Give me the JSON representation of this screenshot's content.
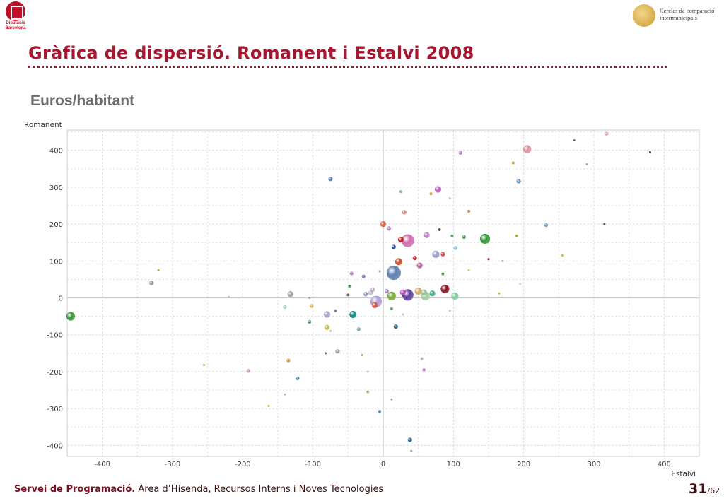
{
  "header": {
    "org_logo_lines": [
      "Diputació",
      "Barcelona"
    ],
    "brand_lines": [
      "Cercles de comparació",
      "intermunicipals"
    ]
  },
  "title": "Gràfica de dispersió. Romanent i Estalvi 2008",
  "subtitle": "Euros/habitant",
  "footer": {
    "bold": "Servei de Programació.",
    "rest": " Àrea d’Hisenda, Recursos Interns i Noves Tecnologies",
    "page": "31",
    "total": "/62"
  },
  "chart_data": {
    "type": "scatter",
    "title": "",
    "xlabel": "Estalvi",
    "ylabel": "Romanent",
    "xlim": [
      -450,
      450
    ],
    "ylim": [
      -430,
      455
    ],
    "xticks": [
      -400,
      -300,
      -200,
      -100,
      0,
      100,
      200,
      300,
      400
    ],
    "yticks": [
      -400,
      -300,
      -200,
      -100,
      0,
      100,
      200,
      300,
      400
    ],
    "grid": true,
    "points": [
      {
        "x": -445,
        "y": -50,
        "size": 6,
        "color": "#3a9a3a"
      },
      {
        "x": -330,
        "y": 40,
        "size": 3,
        "color": "#9a9a9a"
      },
      {
        "x": -320,
        "y": 75,
        "size": 1.5,
        "color": "#c8a030"
      },
      {
        "x": -255,
        "y": -182,
        "size": 1.5,
        "color": "#c8a030"
      },
      {
        "x": -220,
        "y": 2,
        "size": 1.5,
        "color": "#c8c890"
      },
      {
        "x": -192,
        "y": -198,
        "size": 2.5,
        "color": "#d38fd3"
      },
      {
        "x": -163,
        "y": -293,
        "size": 1.5,
        "color": "#c8b840"
      },
      {
        "x": -140,
        "y": -262,
        "size": 1.5,
        "color": "#a0c8a0"
      },
      {
        "x": -140,
        "y": -25,
        "size": 2.5,
        "color": "#a0e0c0"
      },
      {
        "x": -135,
        "y": -170,
        "size": 2.5,
        "color": "#e09040"
      },
      {
        "x": -132,
        "y": 10,
        "size": 4,
        "color": "#a0a0a0"
      },
      {
        "x": -122,
        "y": -218,
        "size": 2.5,
        "color": "#3a7a9a"
      },
      {
        "x": -105,
        "y": 0,
        "size": 1.5,
        "color": "#a0a0c0"
      },
      {
        "x": -102,
        "y": -22,
        "size": 2.5,
        "color": "#e0b040"
      },
      {
        "x": -105,
        "y": -65,
        "size": 2.5,
        "color": "#40a060"
      },
      {
        "x": -82,
        "y": -150,
        "size": 1.5,
        "color": "#606060"
      },
      {
        "x": -80,
        "y": -80,
        "size": 3.5,
        "color": "#d4c040"
      },
      {
        "x": -80,
        "y": -45,
        "size": 4.5,
        "color": "#b0a0d0"
      },
      {
        "x": -75,
        "y": 322,
        "size": 3,
        "color": "#5080c0"
      },
      {
        "x": -75,
        "y": -90,
        "size": 1.5,
        "color": "#c0c0c0"
      },
      {
        "x": -68,
        "y": -35,
        "size": 2,
        "color": "#8080a0"
      },
      {
        "x": -65,
        "y": -145,
        "size": 3,
        "color": "#a0a0b0"
      },
      {
        "x": -50,
        "y": 8,
        "size": 2,
        "color": "#606080"
      },
      {
        "x": -48,
        "y": 32,
        "size": 2,
        "color": "#40a040"
      },
      {
        "x": -45,
        "y": 66,
        "size": 2.5,
        "color": "#c080c0"
      },
      {
        "x": -43,
        "y": -45,
        "size": 5,
        "color": "#1a8a8a"
      },
      {
        "x": -35,
        "y": -85,
        "size": 2.5,
        "color": "#80a0b0"
      },
      {
        "x": -30,
        "y": -155,
        "size": 1.5,
        "color": "#a0c040"
      },
      {
        "x": -28,
        "y": 58,
        "size": 2.5,
        "color": "#8080c0"
      },
      {
        "x": -25,
        "y": 10,
        "size": 3,
        "color": "#9090c0"
      },
      {
        "x": -22,
        "y": -200,
        "size": 1.5,
        "color": "#c0c0c0"
      },
      {
        "x": -22,
        "y": -255,
        "size": 2,
        "color": "#c0b080"
      },
      {
        "x": -18,
        "y": 14,
        "size": 3,
        "color": "#c0c0d0"
      },
      {
        "x": -15,
        "y": 22,
        "size": 3,
        "color": "#d0a0d0"
      },
      {
        "x": -12,
        "y": -20,
        "size": 4,
        "color": "#e05040"
      },
      {
        "x": -10,
        "y": -10,
        "size": 8,
        "color": "#b0a0d8"
      },
      {
        "x": -5,
        "y": -308,
        "size": 2,
        "color": "#3a8ac0"
      },
      {
        "x": -5,
        "y": 72,
        "size": 1.5,
        "color": "#80c080"
      },
      {
        "x": 0,
        "y": 200,
        "size": 4,
        "color": "#e06040"
      },
      {
        "x": 5,
        "y": 18,
        "size": 3,
        "color": "#b080c0"
      },
      {
        "x": 8,
        "y": 188,
        "size": 3,
        "color": "#c080d0"
      },
      {
        "x": 12,
        "y": -275,
        "size": 1.5,
        "color": "#a0a0a0"
      },
      {
        "x": 12,
        "y": -30,
        "size": 2,
        "color": "#60a060"
      },
      {
        "x": 12,
        "y": 5,
        "size": 6,
        "color": "#7ab040"
      },
      {
        "x": 15,
        "y": 68,
        "size": 10,
        "color": "#6080b0"
      },
      {
        "x": 15,
        "y": 138,
        "size": 3,
        "color": "#3050a0"
      },
      {
        "x": 18,
        "y": -78,
        "size": 3,
        "color": "#2a6a8a"
      },
      {
        "x": 22,
        "y": 98,
        "size": 5,
        "color": "#d05030"
      },
      {
        "x": 25,
        "y": 158,
        "size": 4,
        "color": "#c02020"
      },
      {
        "x": 25,
        "y": 288,
        "size": 2,
        "color": "#80c0a0"
      },
      {
        "x": 28,
        "y": -45,
        "size": 1.5,
        "color": "#c0c0c0"
      },
      {
        "x": 28,
        "y": 15,
        "size": 4,
        "color": "#c050c0"
      },
      {
        "x": 30,
        "y": 232,
        "size": 3,
        "color": "#d09070"
      },
      {
        "x": 35,
        "y": 155,
        "size": 9,
        "color": "#d070b0"
      },
      {
        "x": 35,
        "y": 8,
        "size": 8,
        "color": "#6040a0"
      },
      {
        "x": 38,
        "y": -385,
        "size": 3,
        "color": "#2a6a9a"
      },
      {
        "x": 40,
        "y": -415,
        "size": 1.5,
        "color": "#a0a0a0"
      },
      {
        "x": 45,
        "y": 108,
        "size": 3,
        "color": "#c02020"
      },
      {
        "x": 50,
        "y": 18,
        "size": 5,
        "color": "#d0b060"
      },
      {
        "x": 52,
        "y": 88,
        "size": 4,
        "color": "#b060a0"
      },
      {
        "x": 55,
        "y": -165,
        "size": 2,
        "color": "#a0c0d0"
      },
      {
        "x": 58,
        "y": -195,
        "size": 2,
        "color": "#c060c0"
      },
      {
        "x": 58,
        "y": 15,
        "size": 4,
        "color": "#a0c0a0"
      },
      {
        "x": 60,
        "y": 5,
        "size": 6,
        "color": "#a0d0a0"
      },
      {
        "x": 62,
        "y": 170,
        "size": 4,
        "color": "#c080d0"
      },
      {
        "x": 68,
        "y": 282,
        "size": 2,
        "color": "#c0a040"
      },
      {
        "x": 70,
        "y": 12,
        "size": 4,
        "color": "#40b080"
      },
      {
        "x": 75,
        "y": 118,
        "size": 5,
        "color": "#a0a0d0"
      },
      {
        "x": 78,
        "y": 294,
        "size": 4.5,
        "color": "#c060c0"
      },
      {
        "x": 80,
        "y": 185,
        "size": 2,
        "color": "#606060"
      },
      {
        "x": 85,
        "y": 118,
        "size": 3,
        "color": "#e04040"
      },
      {
        "x": 85,
        "y": 65,
        "size": 2,
        "color": "#40a040"
      },
      {
        "x": 88,
        "y": 24,
        "size": 6,
        "color": "#8a1a2a"
      },
      {
        "x": 95,
        "y": -35,
        "size": 1.5,
        "color": "#c0c0c0"
      },
      {
        "x": 95,
        "y": 270,
        "size": 1.5,
        "color": "#c0c0c0"
      },
      {
        "x": 98,
        "y": 168,
        "size": 2,
        "color": "#60a060"
      },
      {
        "x": 102,
        "y": 5,
        "size": 5,
        "color": "#80d0a0"
      },
      {
        "x": 103,
        "y": 135,
        "size": 2.5,
        "color": "#80c0e0"
      },
      {
        "x": 110,
        "y": 393,
        "size": 2.5,
        "color": "#b080c0"
      },
      {
        "x": 115,
        "y": 165,
        "size": 2.5,
        "color": "#40a040"
      },
      {
        "x": 122,
        "y": 235,
        "size": 2,
        "color": "#c09040"
      },
      {
        "x": 122,
        "y": 75,
        "size": 1.5,
        "color": "#c0c040"
      },
      {
        "x": 145,
        "y": 160,
        "size": 7,
        "color": "#3a9a3a"
      },
      {
        "x": 150,
        "y": 105,
        "size": 1.5,
        "color": "#a02020"
      },
      {
        "x": 165,
        "y": 12,
        "size": 1.5,
        "color": "#c0c040"
      },
      {
        "x": 170,
        "y": 100,
        "size": 1.5,
        "color": "#c0a0a0"
      },
      {
        "x": 185,
        "y": 366,
        "size": 2,
        "color": "#c0a040"
      },
      {
        "x": 190,
        "y": 168,
        "size": 2,
        "color": "#a0c040"
      },
      {
        "x": 193,
        "y": 316,
        "size": 3,
        "color": "#6090c0"
      },
      {
        "x": 195,
        "y": 38,
        "size": 1.5,
        "color": "#d0d0a0"
      },
      {
        "x": 205,
        "y": 403,
        "size": 5.5,
        "color": "#e090a0"
      },
      {
        "x": 232,
        "y": 197,
        "size": 2.5,
        "color": "#60a0c0"
      },
      {
        "x": 255,
        "y": 115,
        "size": 1.5,
        "color": "#c0c040"
      },
      {
        "x": 272,
        "y": 427,
        "size": 1.5,
        "color": "#606060"
      },
      {
        "x": 290,
        "y": 362,
        "size": 1.5,
        "color": "#c0a080"
      },
      {
        "x": 315,
        "y": 200,
        "size": 1.5,
        "color": "#404040"
      },
      {
        "x": 318,
        "y": 445,
        "size": 2.5,
        "color": "#e0a0b0"
      },
      {
        "x": 380,
        "y": 395,
        "size": 1.5,
        "color": "#404040"
      }
    ]
  }
}
